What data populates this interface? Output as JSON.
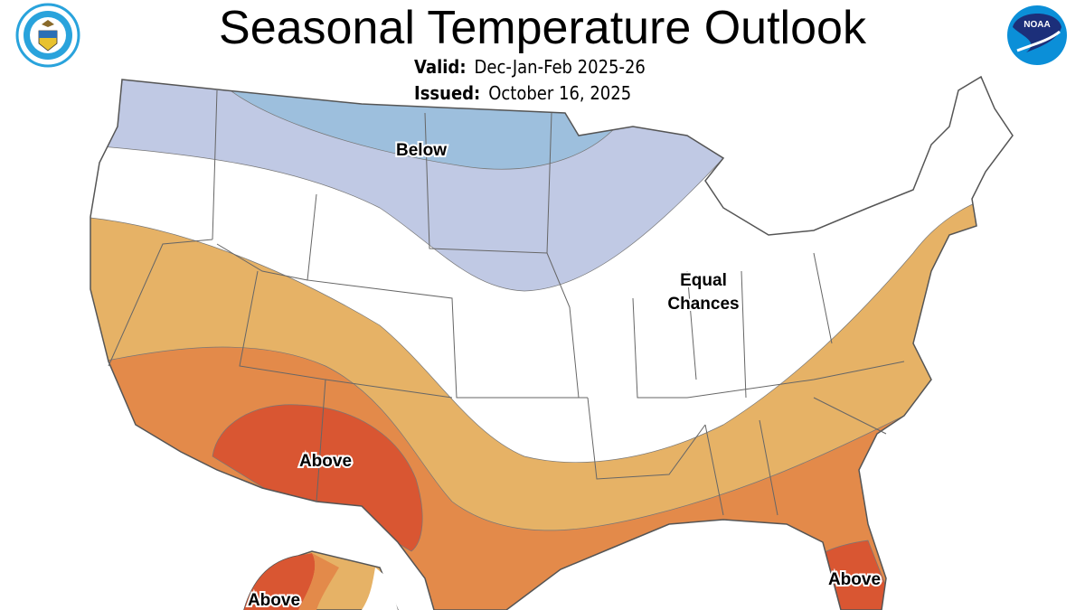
{
  "title": "Seasonal Temperature Outlook",
  "valid": {
    "label": "Valid:",
    "value": "Dec-Jan-Feb 2025-26"
  },
  "issued": {
    "label": "Issued:",
    "value": "October 16, 2025"
  },
  "logos": {
    "left": "US Department of Commerce seal",
    "right": "NOAA",
    "right_text": "NOAA"
  },
  "colors": {
    "below_light": "#c0c9e4",
    "below_strong": "#9dbfdd",
    "above_light": "#e6b266",
    "above_mid": "#e38a4a",
    "above_strong": "#d95632",
    "equal_chances": "#ffffff",
    "border": "#555555"
  },
  "map_labels": {
    "below": "Below",
    "equal_1": "Equal",
    "equal_2": "Chances",
    "above_sw": "Above",
    "above_fl": "Above",
    "above_ak": "Above"
  }
}
